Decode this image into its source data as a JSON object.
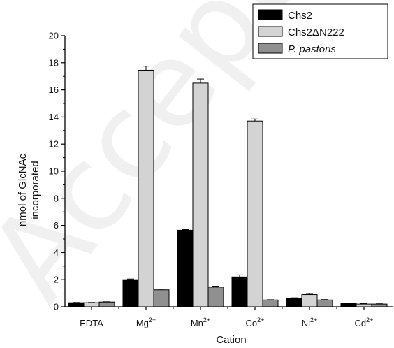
{
  "chart_data": {
    "type": "bar",
    "xlabel": "Cation",
    "ylabel": [
      "nmol of GlcNAc",
      "incorporated"
    ],
    "ylim": [
      0,
      20
    ],
    "yticks": [
      "0",
      "2",
      "4",
      "6",
      "8",
      "10",
      "12",
      "14",
      "16",
      "18",
      "20"
    ],
    "categories": [
      {
        "base": "EDTA",
        "sup": ""
      },
      {
        "base": "Mg",
        "sup": "2+"
      },
      {
        "base": "Mn",
        "sup": "2+"
      },
      {
        "base": "Co",
        "sup": "2+"
      },
      {
        "base": "Ni",
        "sup": "2+"
      },
      {
        "base": "Cd",
        "sup": "2+"
      }
    ],
    "series": [
      {
        "name": "Chs2",
        "color": "#000000",
        "italic": false,
        "values": [
          0.3,
          2.0,
          5.65,
          2.2,
          0.6,
          0.25
        ],
        "errors": [
          0.02,
          0.05,
          0.05,
          0.15,
          0.06,
          0.02
        ]
      },
      {
        "name": "Chs2ΔN222",
        "color": "#d3d3d3",
        "italic": false,
        "values": [
          0.3,
          17.45,
          16.5,
          13.7,
          0.9,
          0.2
        ],
        "errors": [
          0.02,
          0.3,
          0.3,
          0.15,
          0.08,
          0.03
        ]
      },
      {
        "name": "P. pastoris",
        "color": "#909090",
        "italic": true,
        "values": [
          0.35,
          1.25,
          1.45,
          0.5,
          0.5,
          0.2
        ],
        "errors": [
          0.02,
          0.06,
          0.07,
          0.02,
          0.03,
          0.02
        ]
      }
    ],
    "legend_position": "top-right",
    "grid": false
  },
  "watermark": "Accepted Ma"
}
